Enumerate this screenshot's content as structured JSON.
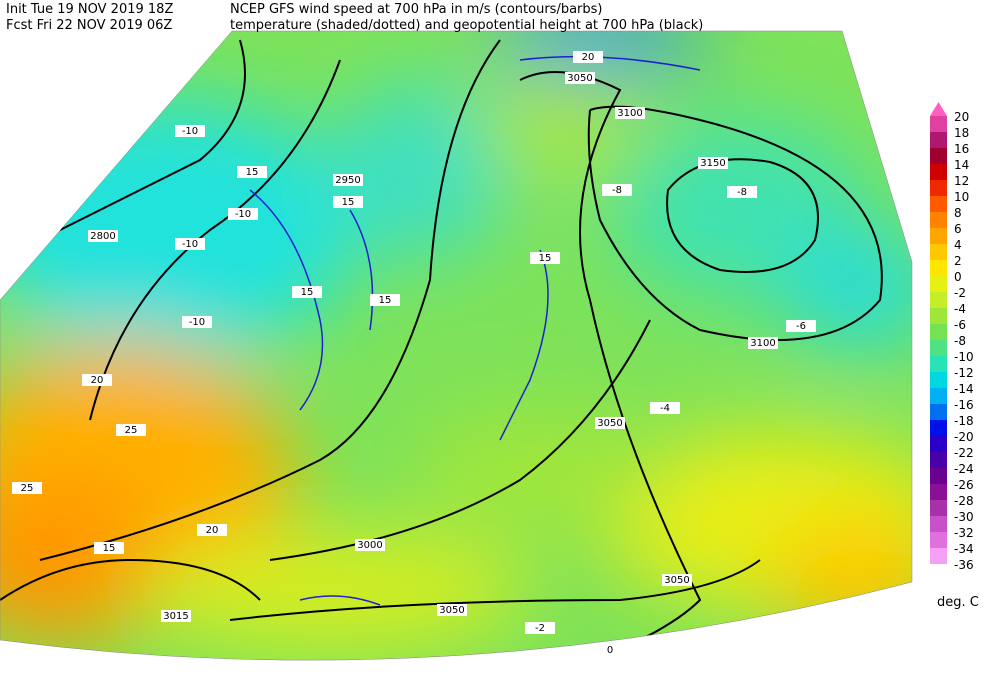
{
  "header": {
    "init": "Init  Tue 19 NOV 2019 18Z",
    "fcst": "Fcst Fri 22 NOV 2019 06Z",
    "line1": "NCEP GFS wind speed at 700 hPa in m/s (contours/barbs)",
    "line2": "temperature (shaded/dotted) and geopotential height at 700 hPa (black)"
  },
  "colorbar": {
    "labels": [
      "20",
      "18",
      "16",
      "14",
      "12",
      "10",
      "8",
      "6",
      "4",
      "2",
      "0",
      "-2",
      "-4",
      "-6",
      "-8",
      "-10",
      "-12",
      "-14",
      "-16",
      "-18",
      "-20",
      "-22",
      "-24",
      "-26",
      "-28",
      "-30",
      "-32",
      "-34",
      "-36"
    ],
    "colors": [
      "#ff5fbf",
      "#e040a0",
      "#b01870",
      "#a00030",
      "#d00000",
      "#f02800",
      "#ff5a00",
      "#ff8200",
      "#ffa500",
      "#ffc800",
      "#ffe600",
      "#e6f014",
      "#c4ee2a",
      "#9ee63a",
      "#74e252",
      "#4ee282",
      "#28e2b8",
      "#00d8e0",
      "#00b0f0",
      "#0070f0",
      "#0010e8",
      "#2800c8",
      "#4800a8",
      "#680090",
      "#8a1096",
      "#a830a8",
      "#c850c8",
      "#e070e0",
      "#f4a0f4"
    ],
    "unit": "deg. C"
  },
  "contour_labels": [
    "3150",
    "3100",
    "3050",
    "3050",
    "3000",
    "3050",
    "2950",
    "2800",
    "3015",
    "3100",
    "3050",
    "20",
    "15",
    "15",
    "15",
    "15",
    "15",
    "20",
    "25",
    "25",
    "20",
    "15",
    "-10",
    "-10",
    "-10",
    "-10",
    "-8",
    "-8",
    "-6",
    "-4",
    "-2",
    "0"
  ]
}
